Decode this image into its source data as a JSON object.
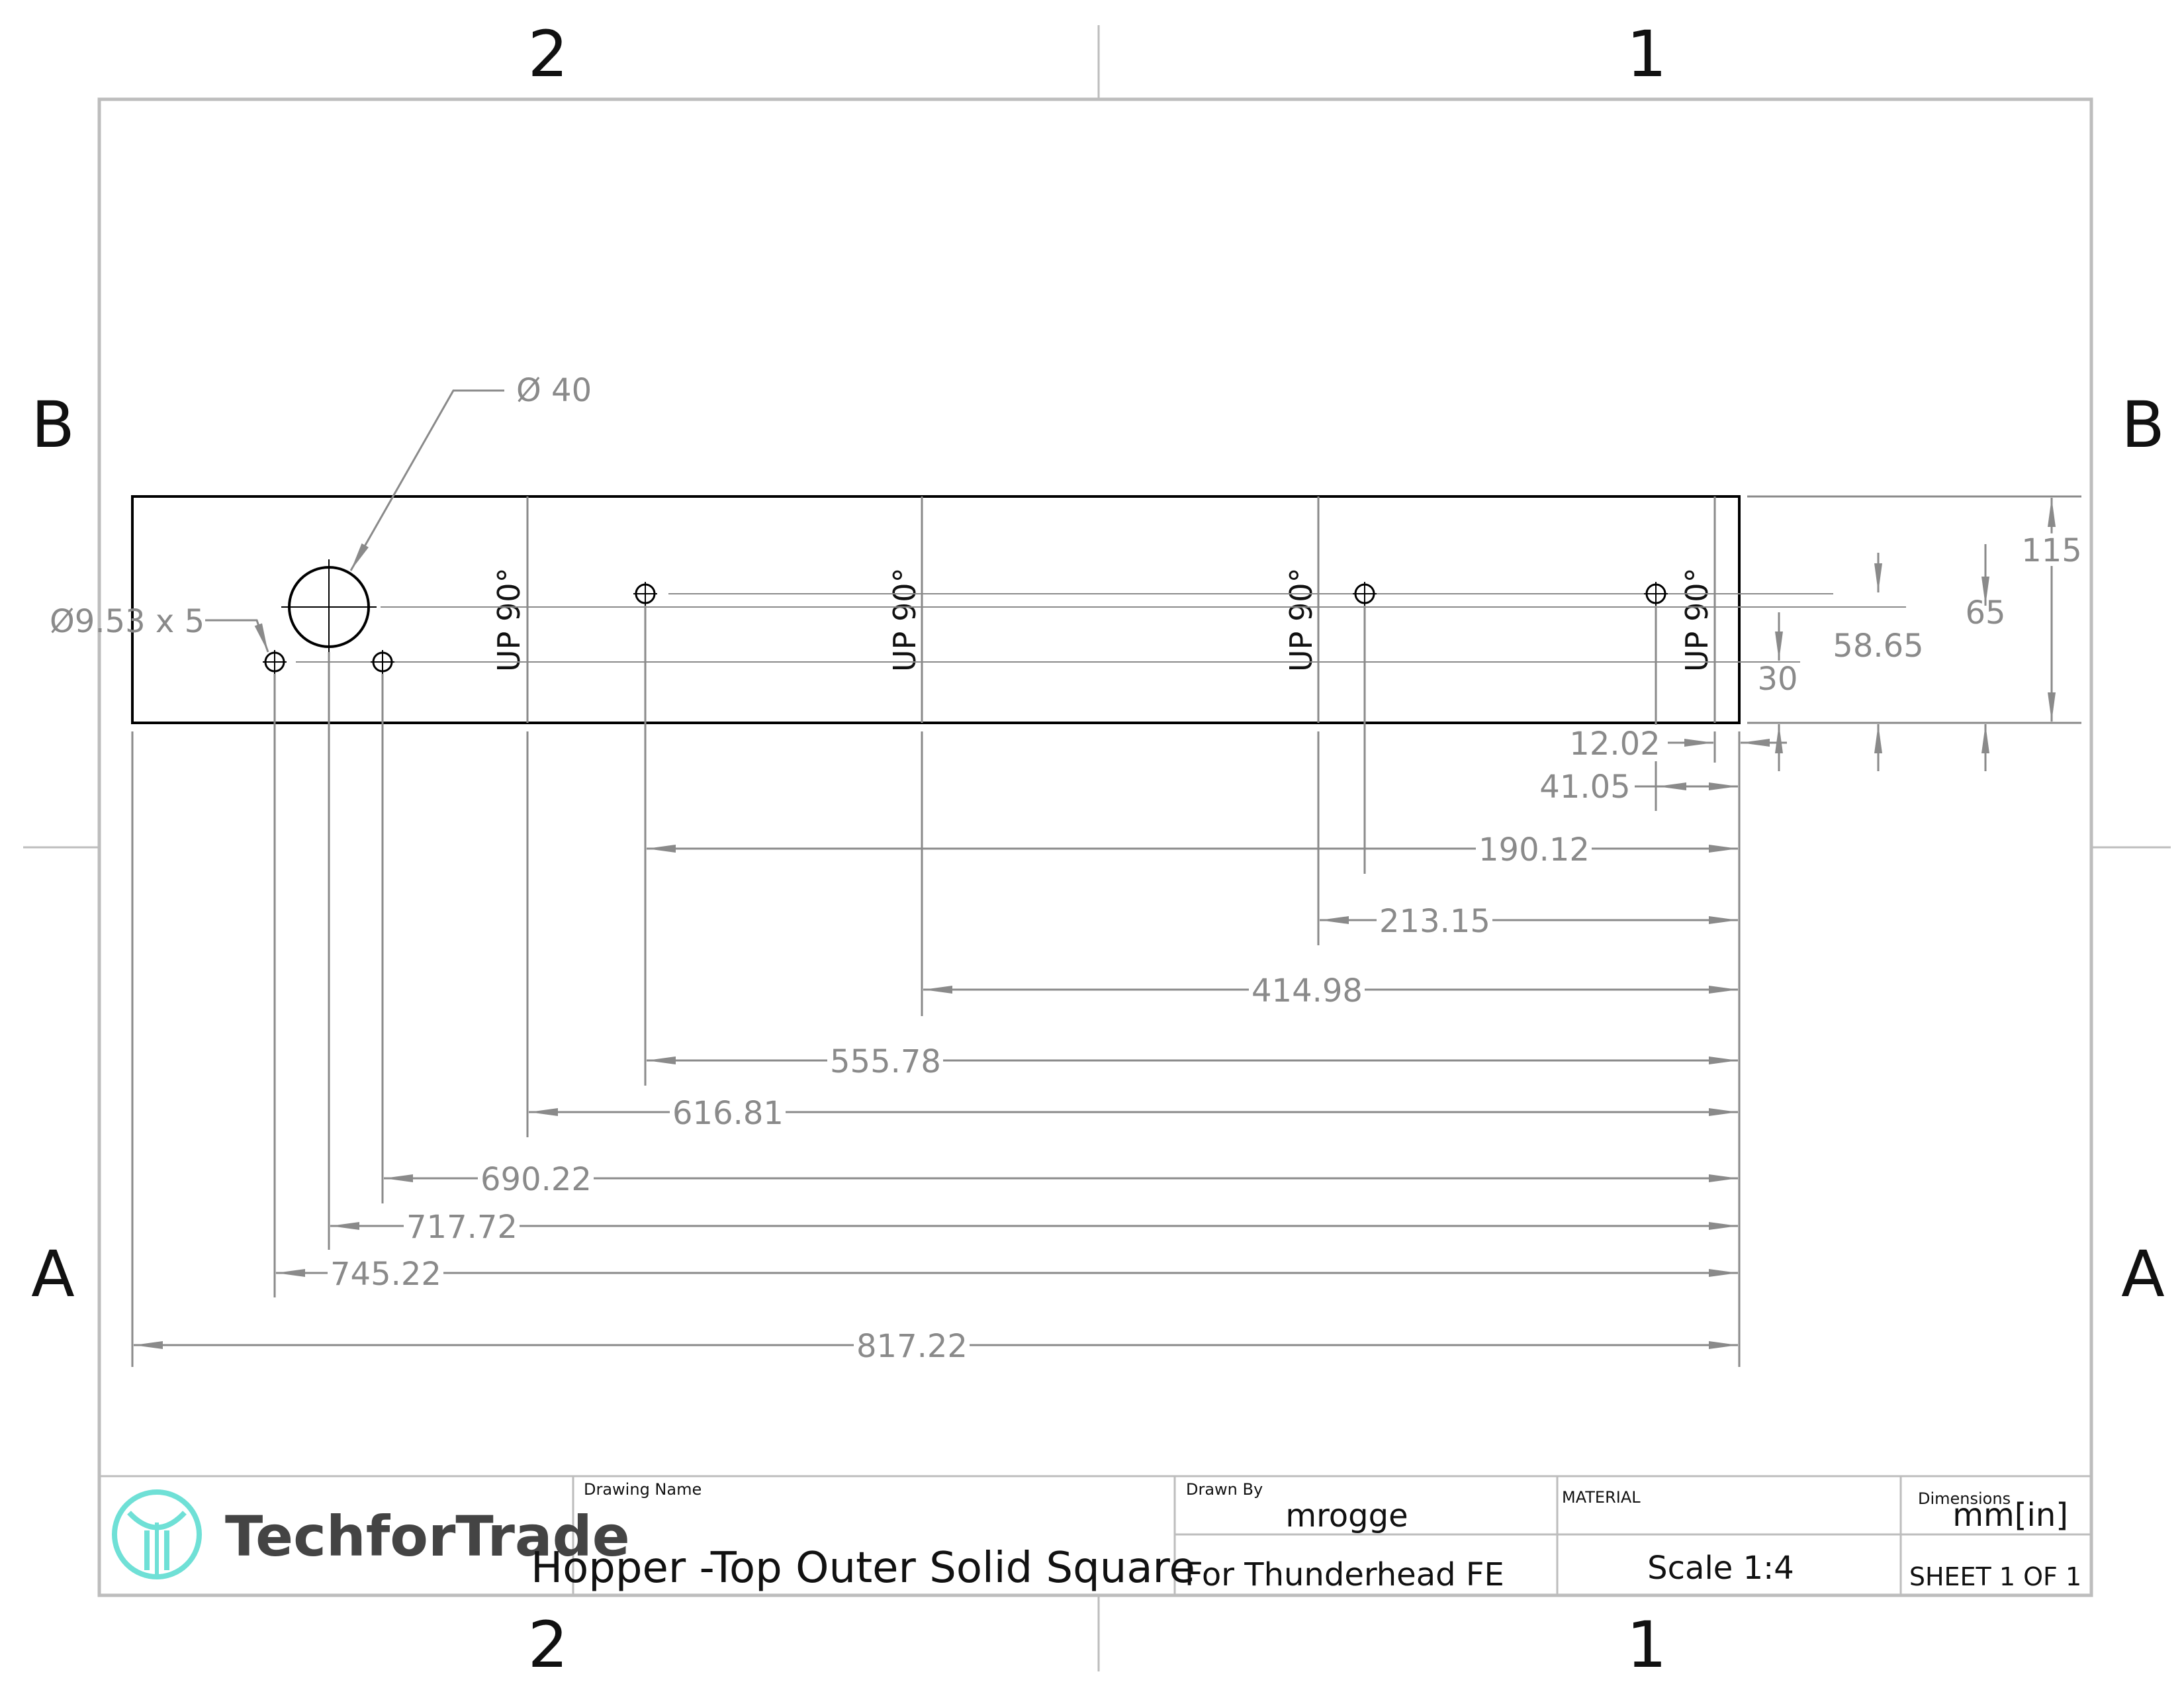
{
  "zone_labels": {
    "top_left": "2",
    "top_right": "1",
    "bottom_left": "2",
    "bottom_right": "1",
    "left_upper": "B",
    "left_lower": "A",
    "right_upper": "B",
    "right_lower": "A"
  },
  "callouts": {
    "big_hole": "Ø 40",
    "small_holes": "Ø9.53 x 5"
  },
  "bend_note": "UP 90°",
  "dimensions": {
    "horizontal": [
      "12.02",
      "41.05",
      "190.12",
      "213.15",
      "414.98",
      "555.78",
      "616.81",
      "690.22",
      "717.72",
      "745.22",
      "817.22"
    ],
    "vertical": [
      "115",
      "65",
      "58.65",
      "30"
    ]
  },
  "title_block": {
    "logo_text": "TechforTrade",
    "drawing_name_label": "Drawing Name",
    "drawing_name": "Hopper -Top Outer Solid Square",
    "drawn_by_label": "Drawn By",
    "drawn_by": "mrogge",
    "for_text": "For Thunderhead FE",
    "material_label": "MATERIAL",
    "scale": "Scale 1:4",
    "dimensions_label": "Dimensions",
    "units": "mm[in]",
    "sheet": "SHEET 1 OF 1"
  },
  "colors": {
    "part": "#000000",
    "dimension": "#8a8a8a",
    "frame": "#bdbdbd",
    "logo": "#6fe0d6"
  },
  "icons": [
    "techfortrade-logo-icon"
  ]
}
